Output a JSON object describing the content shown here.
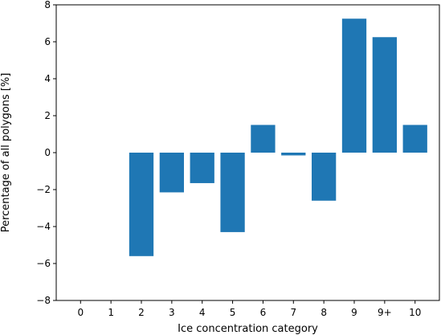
{
  "chart_data": {
    "type": "bar",
    "xlabel": "Ice concentration category",
    "ylabel": "Percentage of all polygons [%]",
    "categories": [
      "0",
      "1",
      "2",
      "3",
      "4",
      "5",
      "6",
      "7",
      "8",
      "9",
      "9+",
      "10"
    ],
    "values": [
      0,
      0,
      -5.6,
      -2.15,
      -1.65,
      -4.3,
      1.5,
      -0.15,
      -2.6,
      7.25,
      6.25,
      1.5
    ],
    "ylim": [
      -8,
      8
    ],
    "yticks": [
      -8,
      -6,
      -4,
      -2,
      0,
      2,
      4,
      6,
      8
    ],
    "grid": false,
    "bar_color": "#1f77b4"
  }
}
